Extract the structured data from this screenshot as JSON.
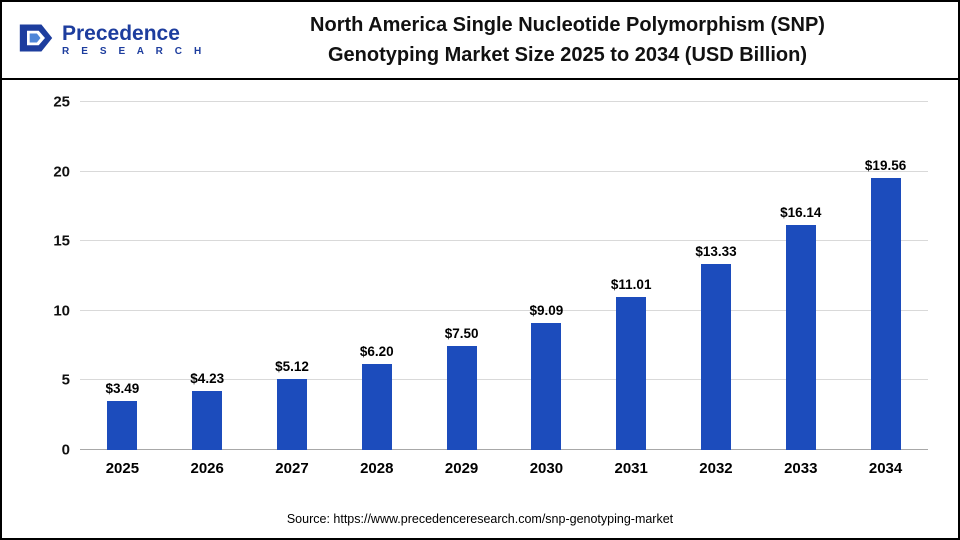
{
  "header": {
    "logo": {
      "name": "Precedence",
      "sub": "R E S E A R C H"
    },
    "title_line1": "North America Single Nucleotide Polymorphism (SNP)",
    "title_line2": "Genotyping Market Size 2025 to 2034 (USD Billion)"
  },
  "footer": {
    "source": "Source: https://www.precedenceresearch.com/snp-genotyping-market"
  },
  "chart_data": {
    "type": "bar",
    "title": "North America Single Nucleotide Polymorphism (SNP) Genotyping Market Size 2025 to 2034 (USD Billion)",
    "categories": [
      "2025",
      "2026",
      "2027",
      "2028",
      "2029",
      "2030",
      "2031",
      "2032",
      "2033",
      "2034"
    ],
    "values": [
      3.49,
      4.23,
      5.12,
      6.2,
      7.5,
      9.09,
      11.01,
      13.33,
      16.14,
      19.56
    ],
    "value_labels": [
      "$3.49",
      "$4.23",
      "$5.12",
      "$6.20",
      "$7.50",
      "$9.09",
      "$11.01",
      "$13.33",
      "$16.14",
      "$19.56"
    ],
    "xlabel": "",
    "ylabel": "",
    "ylim": [
      0,
      25
    ],
    "yticks": [
      0,
      5,
      10,
      15,
      20,
      25
    ],
    "grid": true,
    "legend": "none",
    "bar_color": "#1c4cbc"
  }
}
